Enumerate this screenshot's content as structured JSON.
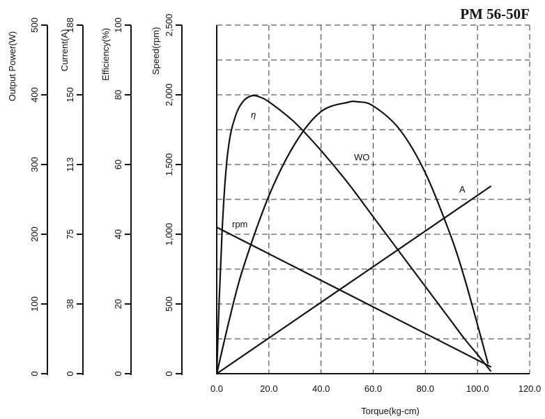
{
  "chart_data": {
    "type": "line",
    "title": "PM 56-50F",
    "xlabel": "Torque(kg-cm)",
    "xlim": [
      0,
      120
    ],
    "x_ticks": [
      "0.0",
      "20.0",
      "40.0",
      "60.0",
      "80.0",
      "100.0",
      "120.0"
    ],
    "grid": true,
    "left_axes": [
      {
        "label": "Output Power(W)",
        "ticks": [
          "0",
          "100",
          "200",
          "300",
          "400",
          "500"
        ]
      },
      {
        "label": "Current(A)",
        "ticks": [
          "0",
          "38",
          "75",
          "113",
          "150",
          "188"
        ]
      },
      {
        "label": "Efficiency(%)",
        "ticks": [
          "0",
          "20",
          "40",
          "60",
          "80",
          "100"
        ]
      },
      {
        "label": "Speed(rpm)",
        "ticks": [
          "0",
          "500",
          "1,000",
          "1,500",
          "2,000",
          "2,500"
        ]
      }
    ],
    "series": [
      {
        "name": "η",
        "axis": "Efficiency(%)",
        "x": [
          0,
          1,
          2,
          3,
          4,
          5,
          6,
          8,
          10,
          12,
          14,
          16,
          20,
          30,
          40,
          50,
          60,
          70,
          80,
          90,
          95,
          100,
          105
        ],
        "values": [
          0,
          22,
          40,
          53,
          62,
          67.5,
          71,
          75.5,
          78,
          79.3,
          79.8,
          79.5,
          78,
          72,
          64,
          55,
          45,
          35,
          25,
          15,
          10,
          5.5,
          0.8
        ]
      },
      {
        "name": "WO",
        "axis": "Output Power(W)",
        "x": [
          0,
          5,
          10,
          20,
          30,
          40,
          50,
          54,
          60,
          70,
          80,
          90,
          95,
          100,
          104
        ],
        "values": [
          0,
          80,
          150,
          255,
          330,
          376,
          389,
          390,
          384,
          351,
          288,
          195,
          137,
          70,
          15
        ]
      },
      {
        "name": "A",
        "axis": "Current(A)",
        "x": [
          0,
          105
        ],
        "values": [
          0,
          101
        ]
      },
      {
        "name": "rpm",
        "axis": "Speed(rpm)",
        "x": [
          0,
          105
        ],
        "values": [
          1050,
          50
        ]
      }
    ],
    "colors": {
      "line": "#111111",
      "grid": "#333333",
      "background": "#ffffff"
    }
  }
}
